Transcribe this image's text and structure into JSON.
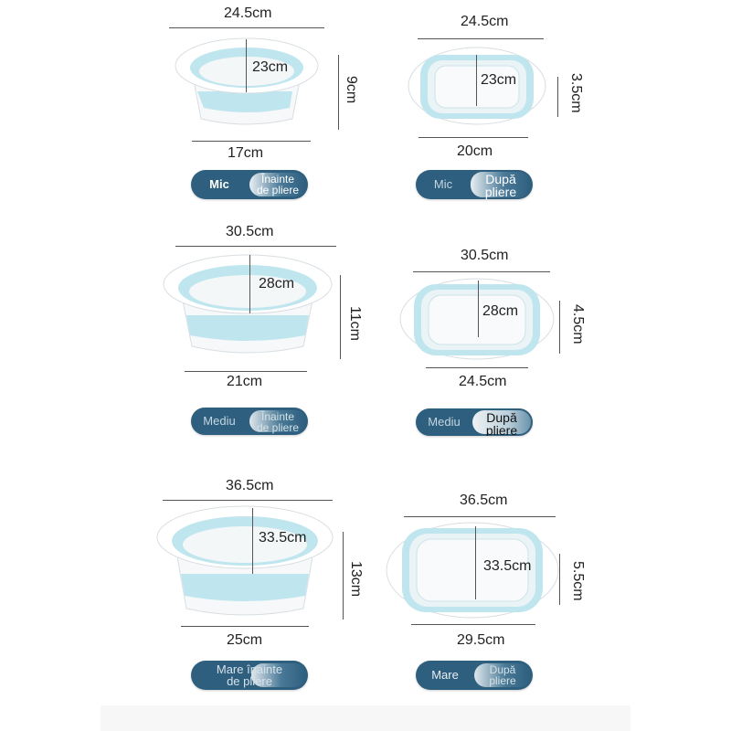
{
  "rows": [
    {
      "before": {
        "top": "24.5cm",
        "inner": "23cm",
        "height": "9cm",
        "bottom": "17cm",
        "button": {
          "size": "Mic",
          "state": "Înainte\nde pliere"
        }
      },
      "after": {
        "top": "24.5cm",
        "inner": "23cm",
        "height": "3.5cm",
        "bottom": "20cm",
        "button": {
          "size": "Mic",
          "state": "După\npliere"
        }
      }
    },
    {
      "before": {
        "top": "30.5cm",
        "inner": "28cm",
        "height": "11cm",
        "bottom": "21cm",
        "button": {
          "size": "Mediu",
          "state": "Înainte\nde pliere"
        }
      },
      "after": {
        "top": "30.5cm",
        "inner": "28cm",
        "height": "4.5cm",
        "bottom": "24.5cm",
        "button": {
          "size": "Mediu",
          "state": "După\npliere"
        }
      }
    },
    {
      "before": {
        "top": "36.5cm",
        "inner": "33.5cm",
        "height": "13cm",
        "bottom": "25cm",
        "button": {
          "size": "Mare înainte\nde pliere",
          "state": ""
        }
      },
      "after": {
        "top": "36.5cm",
        "inner": "33.5cm",
        "height": "5.5cm",
        "bottom": "29.5cm",
        "button": {
          "size": "Mare",
          "state": "După\npliere"
        }
      }
    }
  ],
  "colors": {
    "accent": "#2f5f7e",
    "basin_blue": "#bfe6ee",
    "basin_white": "#f8fafb"
  }
}
